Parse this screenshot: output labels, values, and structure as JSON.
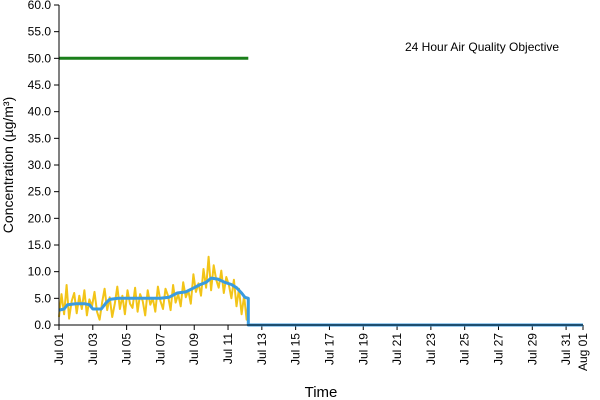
{
  "chart_data": {
    "type": "line",
    "xlabel": "Time",
    "ylabel": "Concentration (µg/m³)",
    "ylim": [
      0,
      60
    ],
    "y_ticks": [
      "0.0",
      "5.0",
      "10.0",
      "15.0",
      "20.0",
      "25.0",
      "30.0",
      "35.0",
      "40.0",
      "45.0",
      "50.0",
      "55.0",
      "60.0"
    ],
    "x_range_days": [
      "Jul 01",
      "Aug 01"
    ],
    "x_ticks": [
      "Jul 01",
      "Jul 03",
      "Jul 05",
      "Jul 07",
      "Jul 09",
      "Jul 11",
      "Jul 13",
      "Jul 15",
      "Jul 17",
      "Jul 19",
      "Jul 21",
      "Jul 23",
      "Jul 25",
      "Jul 27",
      "Jul 29",
      "Jul 31",
      "Aug 01"
    ],
    "grid": false,
    "legend": "none",
    "annotation": "24 Hour Air Quality Objective",
    "series": [
      {
        "color": "#1a7f1a",
        "style": "objective",
        "x": [
          "Jul 01",
          "Jul 12.2"
        ],
        "y": [
          50,
          50
        ]
      },
      {
        "color": "#f2c418",
        "style": "hourly",
        "x": [
          "Jul 01.00",
          "Jul 01.15",
          "Jul 01.30",
          "Jul 01.45",
          "Jul 01.60",
          "Jul 01.75",
          "Jul 01.90",
          "Jul 02.05",
          "Jul 02.20",
          "Jul 02.35",
          "Jul 02.50",
          "Jul 02.65",
          "Jul 02.80",
          "Jul 02.95",
          "Jul 03.10",
          "Jul 03.25",
          "Jul 03.40",
          "Jul 03.55",
          "Jul 03.70",
          "Jul 03.85",
          "Jul 04.00",
          "Jul 04.15",
          "Jul 04.30",
          "Jul 04.45",
          "Jul 04.60",
          "Jul 04.75",
          "Jul 04.90",
          "Jul 05.05",
          "Jul 05.20",
          "Jul 05.35",
          "Jul 05.50",
          "Jul 05.65",
          "Jul 05.80",
          "Jul 05.95",
          "Jul 06.10",
          "Jul 06.25",
          "Jul 06.40",
          "Jul 06.55",
          "Jul 06.70",
          "Jul 06.85",
          "Jul 07.00",
          "Jul 07.15",
          "Jul 07.30",
          "Jul 07.45",
          "Jul 07.60",
          "Jul 07.75",
          "Jul 07.90",
          "Jul 08.05",
          "Jul 08.20",
          "Jul 08.35",
          "Jul 08.50",
          "Jul 08.65",
          "Jul 08.80",
          "Jul 08.95",
          "Jul 09.10",
          "Jul 09.25",
          "Jul 09.40",
          "Jul 09.55",
          "Jul 09.70",
          "Jul 09.85",
          "Jul 10.00",
          "Jul 10.15",
          "Jul 10.30",
          "Jul 10.45",
          "Jul 10.60",
          "Jul 10.75",
          "Jul 10.90",
          "Jul 11.05",
          "Jul 11.20",
          "Jul 11.35",
          "Jul 11.50",
          "Jul 11.65",
          "Jul 11.80",
          "Jul 11.95",
          "Jul 12.10",
          "Jul 12.20"
        ],
        "y": [
          1.5,
          5.8,
          2.0,
          7.5,
          1.2,
          4.5,
          6.0,
          2.2,
          5.5,
          3.0,
          6.5,
          1.8,
          4.8,
          3.5,
          6.2,
          2.5,
          1.0,
          4.2,
          6.8,
          2.8,
          5.2,
          1.5,
          4.0,
          7.2,
          3.0,
          5.5,
          2.0,
          6.5,
          4.0,
          3.2,
          7.0,
          2.5,
          5.8,
          4.5,
          1.8,
          6.5,
          3.8,
          5.0,
          2.5,
          7.2,
          4.5,
          3.0,
          6.8,
          5.5,
          2.8,
          7.5,
          4.2,
          5.8,
          3.5,
          8.0,
          5.2,
          6.5,
          4.0,
          9.5,
          6.2,
          7.8,
          5.5,
          10.5,
          7.0,
          12.8,
          6.5,
          11.2,
          8.5,
          7.0,
          10.2,
          6.0,
          9.0,
          7.5,
          5.0,
          8.5,
          3.5,
          6.8,
          2.0,
          5.5,
          1.0,
          4.0
        ]
      },
      {
        "color": "#3a9be0",
        "style": "rolling-mean",
        "x": [
          "Jul 01.0",
          "Jul 01.3",
          "Jul 01.5",
          "Jul 02.0",
          "Jul 02.5",
          "Jul 02.8",
          "Jul 03.0",
          "Jul 03.5",
          "Jul 03.8",
          "Jul 04.0",
          "Jul 04.5",
          "Jul 05.0",
          "Jul 05.5",
          "Jul 06.0",
          "Jul 06.5",
          "Jul 07.0",
          "Jul 07.5",
          "Jul 08.0",
          "Jul 08.5",
          "Jul 09.0",
          "Jul 09.3",
          "Jul 09.7",
          "Jul 10.0",
          "Jul 10.4",
          "Jul 10.8",
          "Jul 11.2",
          "Jul 11.5",
          "Jul 11.8",
          "Jul 12.0",
          "Jul 12.2",
          "Jul 12.2",
          "Jul 13.0",
          "Aug 01"
        ],
        "y": [
          2.8,
          3.0,
          3.8,
          4.0,
          4.0,
          3.8,
          3.0,
          3.0,
          4.2,
          4.8,
          5.0,
          5.0,
          5.0,
          5.0,
          5.0,
          5.0,
          5.2,
          6.0,
          6.2,
          7.0,
          7.5,
          8.0,
          8.8,
          8.6,
          8.0,
          7.6,
          7.0,
          6.0,
          5.2,
          5.0,
          0,
          0,
          0
        ]
      }
    ]
  }
}
